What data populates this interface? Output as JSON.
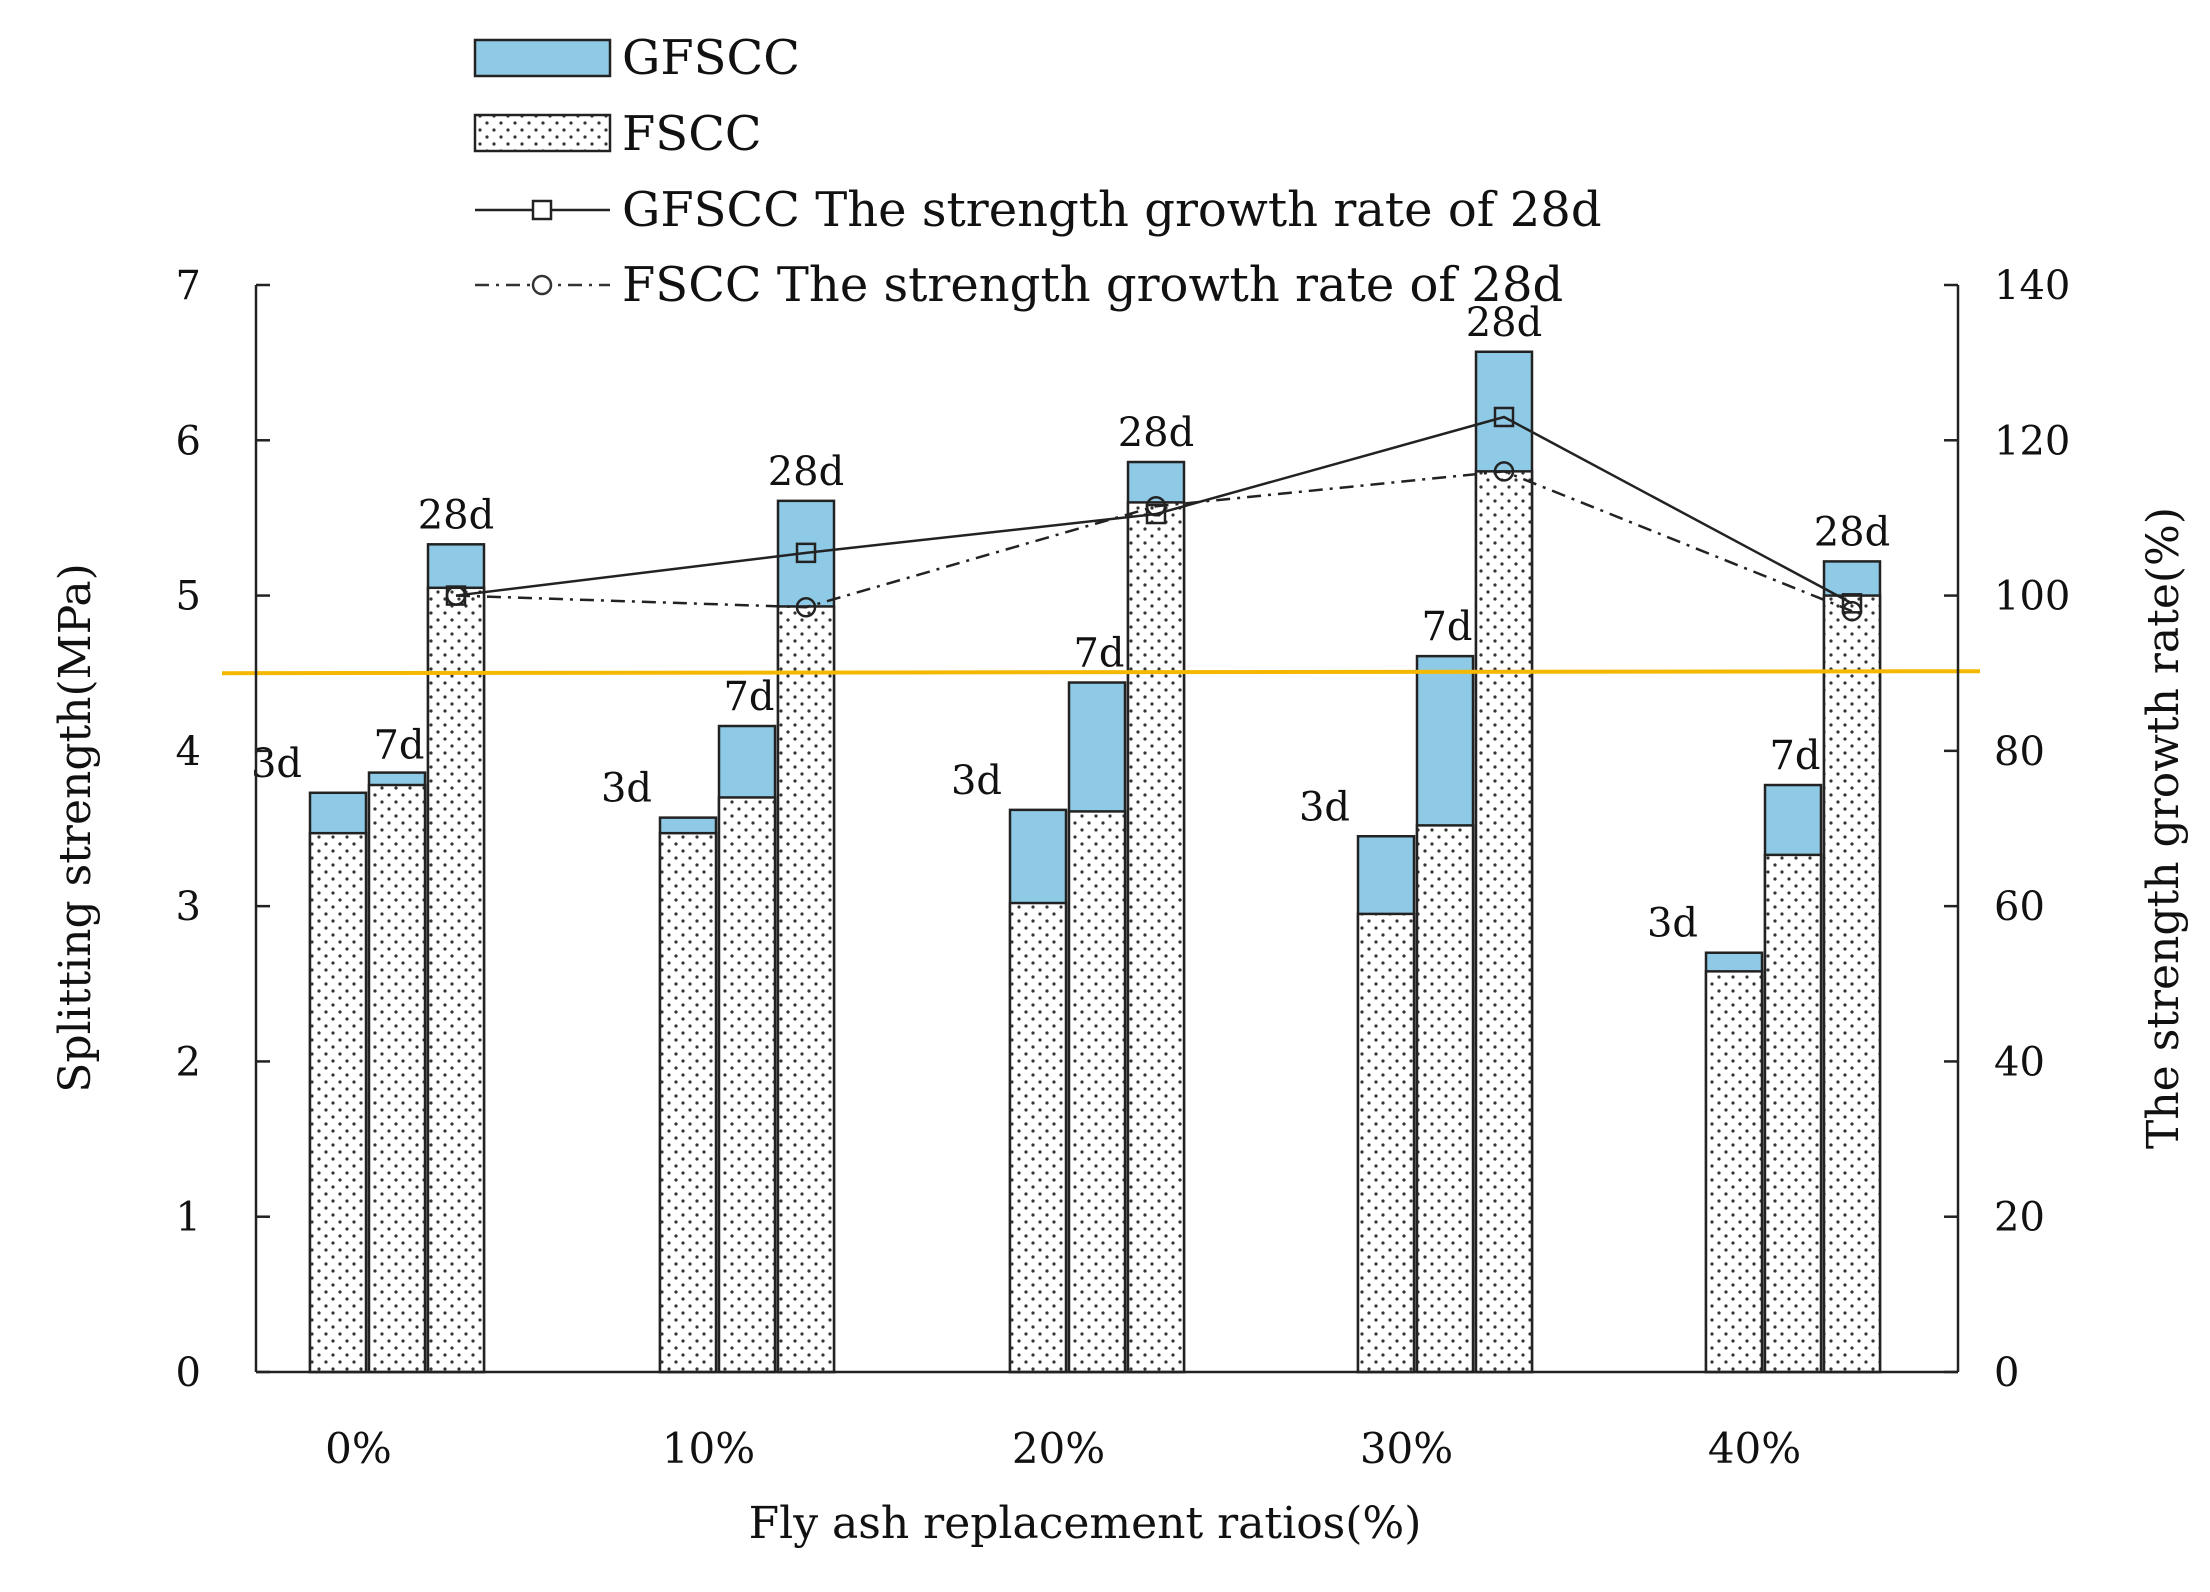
{
  "chart_data": {
    "type": "bar",
    "categories": [
      "0%",
      "10%",
      "20%",
      "30%",
      "40%"
    ],
    "ages": [
      "3d",
      "7d",
      "28d"
    ],
    "series": [
      {
        "name": "FSCC",
        "values": [
          [
            3.47,
            3.78,
            5.05
          ],
          [
            3.47,
            3.7,
            4.93
          ],
          [
            3.02,
            3.61,
            5.6
          ],
          [
            2.95,
            3.52,
            5.8
          ],
          [
            2.58,
            3.33,
            5.0
          ]
        ]
      },
      {
        "name": "GFSCC",
        "values": [
          [
            3.73,
            3.86,
            5.33
          ],
          [
            3.57,
            4.16,
            5.61
          ],
          [
            3.62,
            4.44,
            5.86
          ],
          [
            3.45,
            4.61,
            6.57
          ],
          [
            2.7,
            3.78,
            5.22
          ]
        ]
      }
    ],
    "growth_series": [
      {
        "name": "GFSCC The strength growth rate of 28d",
        "values": [
          100,
          105.5,
          110.5,
          123,
          99
        ]
      },
      {
        "name": "FSCC The strength growth rate of 28d",
        "values": [
          100,
          98.5,
          111.5,
          116,
          98
        ]
      }
    ],
    "legend": [
      "GFSCC",
      "FSCC",
      "GFSCC The strength growth rate of 28d",
      "FSCC The strength growth rate of 28d"
    ],
    "xlabel": "Fly ash replacement ratios(%)",
    "ylabel": "Splitting strength(MPa)",
    "y2label": "The strength growth rate(%)",
    "ylim": [
      0,
      7
    ],
    "y2lim": [
      0,
      140
    ],
    "yticks": [
      "0",
      "1",
      "2",
      "3",
      "4",
      "5",
      "6",
      "7"
    ],
    "y2ticks": [
      "0",
      "20",
      "40",
      "60",
      "80",
      "100",
      "120",
      "140"
    ],
    "reference_line_y": 4.5,
    "colors": {
      "gfscc": "#8ecae6",
      "axis": "#222222",
      "reference": "#f5b800"
    }
  }
}
